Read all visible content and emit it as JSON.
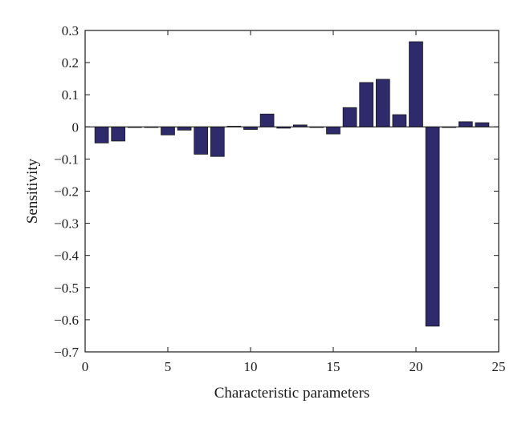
{
  "chart_data": {
    "type": "bar",
    "title": "",
    "xlabel": "Characteristic parameters",
    "ylabel": "Sensitivity",
    "xlim": [
      0,
      25
    ],
    "ylim": [
      -0.7,
      0.3
    ],
    "xticks": [
      0,
      5,
      10,
      15,
      20,
      25
    ],
    "xtick_labels": [
      "0",
      "5",
      "10",
      "15",
      "20",
      "25"
    ],
    "yticks": [
      0.3,
      0.2,
      0.1,
      0,
      -0.1,
      -0.2,
      -0.3,
      -0.4,
      -0.5,
      -0.6,
      -0.7
    ],
    "ytick_labels": [
      "0.3",
      "0.2",
      "0.1",
      "0",
      "−0.1",
      "−0.2",
      "−0.3",
      "−0.4",
      "−0.5",
      "−0.6",
      "−0.7"
    ],
    "grid": false,
    "bar_color": "#2e2a6b",
    "x": [
      1,
      2,
      3,
      4,
      5,
      6,
      7,
      8,
      9,
      10,
      11,
      12,
      13,
      14,
      15,
      16,
      17,
      18,
      19,
      20,
      21,
      22,
      23,
      24
    ],
    "values": [
      -0.05,
      -0.044,
      0.0,
      0.0,
      -0.025,
      -0.01,
      -0.085,
      -0.092,
      0.002,
      -0.008,
      0.04,
      -0.004,
      0.006,
      0.0,
      -0.022,
      0.06,
      0.138,
      0.148,
      0.038,
      0.265,
      -0.62,
      0.0,
      0.016,
      0.013
    ]
  }
}
